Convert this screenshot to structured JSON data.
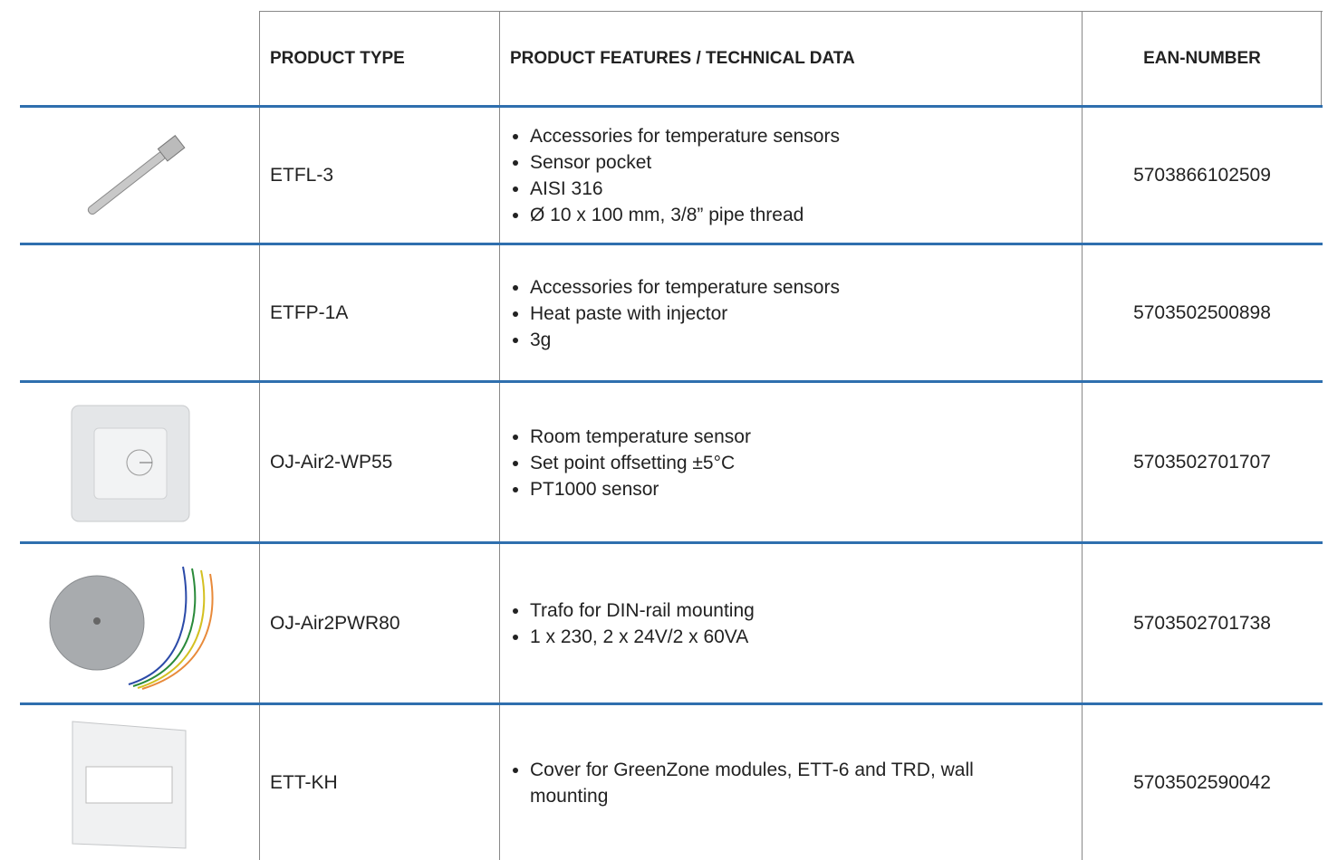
{
  "header": {
    "columns": [
      "PRODUCT TYPE",
      "PRODUCT FEATURES / TECHNICAL DATA",
      "EAN-NUMBER"
    ]
  },
  "rows": [
    {
      "type": "ETFL-3",
      "features": [
        "Accessories for temperature sensors",
        "Sensor pocket",
        "AISI 316",
        "Ø 10 x 100 mm, 3/8” pipe thread"
      ],
      "ean": "5703866102509"
    },
    {
      "type": "ETFP-1A",
      "features": [
        "Accessories for temperature sensors",
        "Heat paste with injector",
        "3g"
      ],
      "ean": "5703502500898"
    },
    {
      "type": "OJ-Air2-WP55",
      "features": [
        "Room temperature sensor",
        "Set point offsetting ±5°C",
        "PT1000 sensor"
      ],
      "ean": "5703502701707"
    },
    {
      "type": "OJ-Air2PWR80",
      "features": [
        "Trafo for DIN-rail mounting",
        "1 x 230, 2 x 24V/2 x 60VA"
      ],
      "ean": "5703502701738"
    },
    {
      "type": "ETT-KH",
      "features": [
        "Cover for GreenZone modules, ETT-6 and TRD, wall mounting"
      ],
      "ean": "5703502590042"
    }
  ]
}
